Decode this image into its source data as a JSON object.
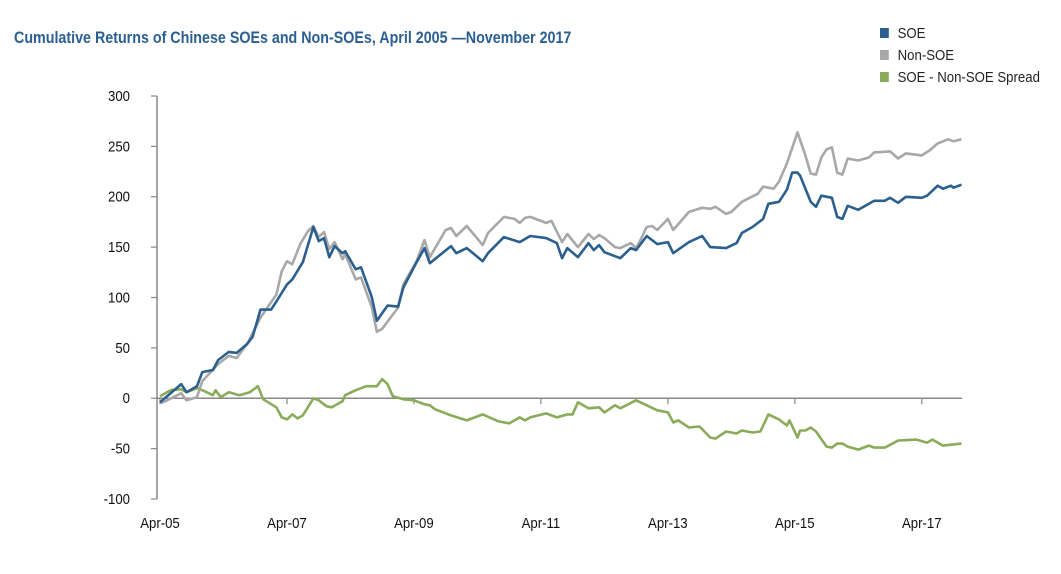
{
  "chart_data": {
    "type": "line",
    "title": "Cumulative Returns of Chinese SOEs and Non-SOEs, April 2005 —November 2017",
    "xlabel": "",
    "ylabel": "",
    "x_unit": "months since Apr 2005",
    "xlim": [
      0,
      151.6
    ],
    "ylim": [
      -100,
      300
    ],
    "yticks": [
      -100,
      -50,
      0,
      50,
      100,
      150,
      200,
      250,
      300
    ],
    "xticks": [
      {
        "x": 0,
        "label": "Apr-05"
      },
      {
        "x": 24,
        "label": "Apr-07"
      },
      {
        "x": 48,
        "label": "Apr-09"
      },
      {
        "x": 72,
        "label": "Apr-11"
      },
      {
        "x": 96,
        "label": "Apr-13"
      },
      {
        "x": 120,
        "label": "Apr-15"
      },
      {
        "x": 144,
        "label": "Apr-17"
      }
    ],
    "grid": false,
    "legend_position": "top-right",
    "series": [
      {
        "name": "SOE",
        "color": "#2b5f8e",
        "points": [
          [
            0,
            -4
          ],
          [
            4,
            14
          ],
          [
            5,
            6
          ],
          [
            7,
            12
          ],
          [
            8,
            26
          ],
          [
            10,
            28
          ],
          [
            11,
            38
          ],
          [
            13,
            46
          ],
          [
            14.5,
            45
          ],
          [
            16.5,
            54
          ],
          [
            17.5,
            61
          ],
          [
            19,
            88
          ],
          [
            21,
            88
          ],
          [
            22,
            96
          ],
          [
            24,
            113
          ],
          [
            25,
            118
          ],
          [
            27,
            135
          ],
          [
            29,
            170
          ],
          [
            30,
            156
          ],
          [
            31,
            159
          ],
          [
            32,
            140
          ],
          [
            33,
            151
          ],
          [
            34.5,
            144
          ],
          [
            35,
            146
          ],
          [
            37,
            128
          ],
          [
            38,
            130
          ],
          [
            40,
            101
          ],
          [
            41,
            77
          ],
          [
            43,
            92
          ],
          [
            45,
            91
          ],
          [
            46,
            110
          ],
          [
            48.5,
            135
          ],
          [
            50,
            149
          ],
          [
            51,
            134
          ],
          [
            55,
            151
          ],
          [
            56,
            144
          ],
          [
            58,
            149
          ],
          [
            61,
            136
          ],
          [
            62,
            144
          ],
          [
            65,
            160
          ],
          [
            68,
            155
          ],
          [
            70,
            161
          ],
          [
            73,
            159
          ],
          [
            75,
            154
          ],
          [
            76,
            139
          ],
          [
            77,
            149
          ],
          [
            79,
            140
          ],
          [
            81,
            154
          ],
          [
            82,
            147
          ],
          [
            83,
            152
          ],
          [
            84,
            145
          ],
          [
            87,
            139
          ],
          [
            89,
            149
          ],
          [
            90,
            147
          ],
          [
            92,
            161
          ],
          [
            94,
            153
          ],
          [
            96,
            155
          ],
          [
            97,
            144
          ],
          [
            100,
            155
          ],
          [
            102.5,
            161
          ],
          [
            104,
            150
          ],
          [
            107,
            149
          ],
          [
            109,
            154
          ],
          [
            110,
            164
          ],
          [
            112,
            170
          ],
          [
            114,
            178
          ],
          [
            115,
            193
          ],
          [
            117,
            195
          ],
          [
            118.5,
            207
          ],
          [
            119.5,
            224
          ],
          [
            120.5,
            224
          ],
          [
            121,
            221
          ],
          [
            123,
            195
          ],
          [
            124,
            190
          ],
          [
            125,
            201
          ],
          [
            127,
            199
          ],
          [
            128,
            180
          ],
          [
            129,
            178
          ],
          [
            130,
            191
          ],
          [
            132,
            187
          ],
          [
            135,
            196
          ],
          [
            137,
            196
          ],
          [
            138,
            199
          ],
          [
            139.5,
            194
          ],
          [
            141,
            200
          ],
          [
            144,
            199
          ],
          [
            145,
            201
          ],
          [
            147,
            211
          ],
          [
            148,
            208
          ],
          [
            149.5,
            211
          ],
          [
            150,
            209
          ],
          [
            151.5,
            212
          ]
        ]
      },
      {
        "name": "Non-SOE",
        "color": "#a8a8a8",
        "points": [
          [
            0,
            -5
          ],
          [
            1,
            -3
          ],
          [
            4,
            5
          ],
          [
            5,
            -2
          ],
          [
            7,
            1
          ],
          [
            8,
            17
          ],
          [
            11,
            34
          ],
          [
            13,
            42
          ],
          [
            14.5,
            40
          ],
          [
            16.5,
            54
          ],
          [
            19,
            80
          ],
          [
            22,
            103
          ],
          [
            23,
            126
          ],
          [
            24,
            136
          ],
          [
            25,
            133
          ],
          [
            26.5,
            153
          ],
          [
            28,
            166
          ],
          [
            29,
            171
          ],
          [
            30,
            160
          ],
          [
            31,
            165
          ],
          [
            32,
            148
          ],
          [
            33,
            155
          ],
          [
            34.5,
            138
          ],
          [
            35,
            143
          ],
          [
            37,
            118
          ],
          [
            38,
            120
          ],
          [
            40,
            91
          ],
          [
            41,
            66
          ],
          [
            42,
            69
          ],
          [
            45,
            90
          ],
          [
            46,
            113
          ],
          [
            48.5,
            136
          ],
          [
            50,
            157
          ],
          [
            51,
            140
          ],
          [
            54,
            167
          ],
          [
            55,
            169
          ],
          [
            56,
            161
          ],
          [
            58,
            171
          ],
          [
            61,
            152
          ],
          [
            62,
            164
          ],
          [
            65,
            180
          ],
          [
            67,
            178
          ],
          [
            68,
            174
          ],
          [
            69,
            179
          ],
          [
            70,
            180
          ],
          [
            73,
            174
          ],
          [
            74,
            176
          ],
          [
            76,
            155
          ],
          [
            77,
            163
          ],
          [
            79,
            150
          ],
          [
            81,
            163
          ],
          [
            82,
            158
          ],
          [
            83,
            162
          ],
          [
            84,
            159
          ],
          [
            86,
            150
          ],
          [
            87,
            149
          ],
          [
            89,
            154
          ],
          [
            90,
            149
          ],
          [
            91,
            159
          ],
          [
            92,
            170
          ],
          [
            93,
            171
          ],
          [
            94,
            167
          ],
          [
            96,
            178
          ],
          [
            97,
            167
          ],
          [
            100,
            185
          ],
          [
            102.5,
            189
          ],
          [
            104,
            188
          ],
          [
            105,
            190
          ],
          [
            107,
            183
          ],
          [
            108,
            185
          ],
          [
            110,
            195
          ],
          [
            113,
            203
          ],
          [
            114,
            210
          ],
          [
            116,
            208
          ],
          [
            117,
            215
          ],
          [
            118.5,
            233
          ],
          [
            120.5,
            264
          ],
          [
            122,
            241
          ],
          [
            123,
            223
          ],
          [
            124,
            222
          ],
          [
            125,
            239
          ],
          [
            126,
            247
          ],
          [
            127,
            249
          ],
          [
            128,
            224
          ],
          [
            129,
            222
          ],
          [
            130,
            238
          ],
          [
            132,
            236
          ],
          [
            134,
            239
          ],
          [
            135,
            244
          ],
          [
            138,
            245
          ],
          [
            139.5,
            238
          ],
          [
            141,
            243
          ],
          [
            144,
            241
          ],
          [
            145.5,
            246
          ],
          [
            147,
            253
          ],
          [
            149,
            257
          ],
          [
            150,
            255
          ],
          [
            151.5,
            257
          ]
        ]
      },
      {
        "name": "SOE - Non-SOE Spread",
        "color": "#8aab5a",
        "points": [
          [
            0,
            2
          ],
          [
            2,
            8
          ],
          [
            4,
            9
          ],
          [
            5,
            6
          ],
          [
            7,
            10
          ],
          [
            8,
            8
          ],
          [
            10,
            3
          ],
          [
            10.5,
            8
          ],
          [
            11.5,
            1
          ],
          [
            13,
            6
          ],
          [
            15,
            3
          ],
          [
            17,
            6
          ],
          [
            18.5,
            12
          ],
          [
            19.5,
            -1
          ],
          [
            22,
            -9
          ],
          [
            23,
            -19
          ],
          [
            24,
            -21
          ],
          [
            25,
            -16
          ],
          [
            26,
            -20
          ],
          [
            27,
            -17
          ],
          [
            29,
            0
          ],
          [
            30,
            -2
          ],
          [
            31.5,
            -8
          ],
          [
            32.5,
            -9
          ],
          [
            34.5,
            -3
          ],
          [
            35,
            3
          ],
          [
            37,
            8
          ],
          [
            39,
            12
          ],
          [
            41,
            12
          ],
          [
            42,
            19
          ],
          [
            43,
            14
          ],
          [
            44,
            2
          ],
          [
            46,
            -1
          ],
          [
            48,
            -2
          ],
          [
            50,
            -6
          ],
          [
            51,
            -7
          ],
          [
            52,
            -11
          ],
          [
            55,
            -17
          ],
          [
            58,
            -22
          ],
          [
            61,
            -16
          ],
          [
            64,
            -23
          ],
          [
            66,
            -25
          ],
          [
            68,
            -19
          ],
          [
            69,
            -22
          ],
          [
            70,
            -19
          ],
          [
            73,
            -15
          ],
          [
            75,
            -19
          ],
          [
            77,
            -16
          ],
          [
            78,
            -16
          ],
          [
            79,
            -4
          ],
          [
            81,
            -10
          ],
          [
            83,
            -9
          ],
          [
            84,
            -14
          ],
          [
            86,
            -7
          ],
          [
            87,
            -10
          ],
          [
            90,
            -2
          ],
          [
            94,
            -12
          ],
          [
            96,
            -14
          ],
          [
            97,
            -24
          ],
          [
            98,
            -22
          ],
          [
            100,
            -29
          ],
          [
            102,
            -28
          ],
          [
            104,
            -39
          ],
          [
            105,
            -40
          ],
          [
            107,
            -33
          ],
          [
            109,
            -35
          ],
          [
            110,
            -32
          ],
          [
            112,
            -34
          ],
          [
            113.5,
            -33
          ],
          [
            115,
            -16
          ],
          [
            117,
            -21
          ],
          [
            118.5,
            -27
          ],
          [
            119,
            -22
          ],
          [
            120.5,
            -39
          ],
          [
            121,
            -32
          ],
          [
            122,
            -32
          ],
          [
            123,
            -29
          ],
          [
            124,
            -33
          ],
          [
            126,
            -48
          ],
          [
            127,
            -49
          ],
          [
            128,
            -45
          ],
          [
            129,
            -45
          ],
          [
            130,
            -48
          ],
          [
            132,
            -51
          ],
          [
            134,
            -47
          ],
          [
            135,
            -49
          ],
          [
            137,
            -49
          ],
          [
            139.5,
            -42
          ],
          [
            143,
            -41
          ],
          [
            145,
            -44
          ],
          [
            146,
            -41
          ],
          [
            147,
            -44
          ],
          [
            148,
            -47
          ],
          [
            151.5,
            -45
          ]
        ]
      }
    ]
  }
}
